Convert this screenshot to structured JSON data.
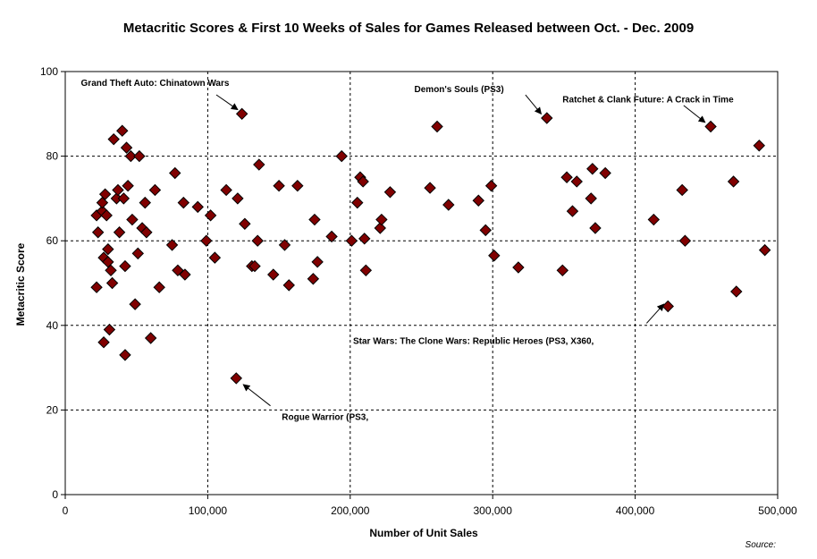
{
  "chart_data": {
    "type": "scatter",
    "title": "Metacritic Scores & First 10 Weeks of Sales for Games Released between Oct. - Dec. 2009",
    "xlabel": "Number of Unit Sales",
    "ylabel": "Metacritic Score",
    "xlim": [
      0,
      500000
    ],
    "ylim": [
      0,
      100
    ],
    "x_ticks": [
      0,
      100000,
      200000,
      300000,
      400000,
      500000
    ],
    "x_tick_labels": [
      "0",
      "100,000",
      "200,000",
      "300,000",
      "400,000",
      "500,000"
    ],
    "y_ticks": [
      0,
      20,
      40,
      60,
      80,
      100
    ],
    "y_tick_labels": [
      "0",
      "20",
      "40",
      "60",
      "80",
      "100"
    ],
    "grid": true,
    "legend": "none",
    "marker_color": "#800000",
    "source_label": "Source:",
    "points": [
      [
        22000,
        49
      ],
      [
        22000,
        66
      ],
      [
        23000,
        62
      ],
      [
        26000,
        67
      ],
      [
        26000,
        69
      ],
      [
        27000,
        36
      ],
      [
        27000,
        56
      ],
      [
        28000,
        71
      ],
      [
        29000,
        66
      ],
      [
        30000,
        55
      ],
      [
        30000,
        58
      ],
      [
        31000,
        39
      ],
      [
        32000,
        53
      ],
      [
        33000,
        50
      ],
      [
        34000,
        84
      ],
      [
        36000,
        70
      ],
      [
        37000,
        72
      ],
      [
        38000,
        62
      ],
      [
        40000,
        86
      ],
      [
        41000,
        70
      ],
      [
        42000,
        54
      ],
      [
        42000,
        33
      ],
      [
        43000,
        82
      ],
      [
        44000,
        73
      ],
      [
        46000,
        80
      ],
      [
        47000,
        65
      ],
      [
        49000,
        45
      ],
      [
        51000,
        57
      ],
      [
        52000,
        80
      ],
      [
        54000,
        63
      ],
      [
        56000,
        69
      ],
      [
        57000,
        62
      ],
      [
        60000,
        37
      ],
      [
        63000,
        72
      ],
      [
        66000,
        49
      ],
      [
        75000,
        59
      ],
      [
        77000,
        76
      ],
      [
        79000,
        53
      ],
      [
        83000,
        69
      ],
      [
        84000,
        52
      ],
      [
        93000,
        68
      ],
      [
        99000,
        60
      ],
      [
        102000,
        66
      ],
      [
        105000,
        56
      ],
      [
        113000,
        72
      ],
      [
        120000,
        27.5
      ],
      [
        121000,
        70
      ],
      [
        124000,
        90
      ],
      [
        126000,
        64
      ],
      [
        131000,
        54
      ],
      [
        133000,
        54
      ],
      [
        135000,
        60
      ],
      [
        136000,
        78
      ],
      [
        146000,
        52
      ],
      [
        150000,
        73
      ],
      [
        154000,
        59
      ],
      [
        157000,
        49.5
      ],
      [
        163000,
        73
      ],
      [
        174000,
        51
      ],
      [
        175000,
        65
      ],
      [
        177000,
        55
      ],
      [
        187000,
        61
      ],
      [
        194000,
        80
      ],
      [
        201000,
        60
      ],
      [
        205000,
        69
      ],
      [
        207000,
        75
      ],
      [
        209000,
        74
      ],
      [
        210000,
        60.5
      ],
      [
        211000,
        53
      ],
      [
        221000,
        63
      ],
      [
        222000,
        65
      ],
      [
        228000,
        71.5
      ],
      [
        256000,
        72.5
      ],
      [
        261000,
        87
      ],
      [
        269000,
        68.5
      ],
      [
        290000,
        69.5
      ],
      [
        295000,
        62.5
      ],
      [
        299000,
        73
      ],
      [
        301000,
        56.5
      ],
      [
        318000,
        53.7
      ],
      [
        338000,
        89
      ],
      [
        349000,
        53
      ],
      [
        352000,
        75
      ],
      [
        356000,
        67
      ],
      [
        359000,
        74
      ],
      [
        369000,
        70
      ],
      [
        370000,
        77
      ],
      [
        372000,
        63
      ],
      [
        379000,
        76
      ],
      [
        413000,
        65
      ],
      [
        423000,
        44.5
      ],
      [
        433000,
        72
      ],
      [
        435000,
        60
      ],
      [
        453000,
        87
      ],
      [
        469000,
        74
      ],
      [
        471000,
        48
      ],
      [
        487000,
        82.5
      ],
      [
        491000,
        57.8
      ]
    ],
    "annotations": [
      {
        "text": "Grand Theft Auto: Chinatown Wars",
        "label_x": 11000,
        "label_y": 97.5,
        "label_anchor": "start",
        "arrow_from": [
          106000,
          94.5
        ],
        "arrow_to": [
          121000,
          91
        ]
      },
      {
        "text": "Demon's Souls (PS3)",
        "label_x": 245000,
        "label_y": 96,
        "label_anchor": "start",
        "arrow_from": [
          323000,
          94.5
        ],
        "arrow_to": [
          334000,
          90
        ]
      },
      {
        "text": "Ratchet & Clank Future: A Crack in Time",
        "label_x": 349000,
        "label_y": 93.5,
        "label_anchor": "start",
        "arrow_from": [
          434000,
          92
        ],
        "arrow_to": [
          449000,
          88
        ]
      },
      {
        "text": "Star Wars: The Clone Wars: Republic Heroes (PS3, X360,",
        "label_x": 202000,
        "label_y": 36.5,
        "label_anchor": "start",
        "arrow_from": [
          408000,
          40.5
        ],
        "arrow_to": [
          420000,
          45
        ]
      },
      {
        "text": "Rogue Warrior (PS3,",
        "label_x": 152000,
        "label_y": 18.5,
        "label_anchor": "start",
        "arrow_from": [
          144000,
          21
        ],
        "arrow_to": [
          125000,
          26
        ]
      }
    ]
  }
}
